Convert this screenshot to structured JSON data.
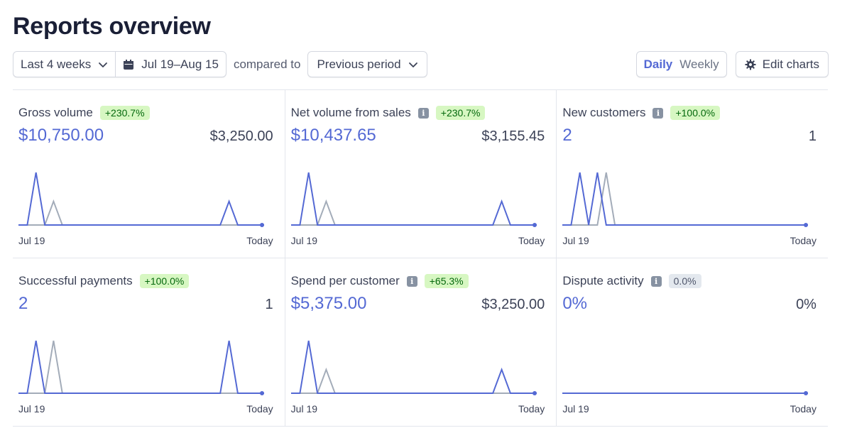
{
  "page": {
    "title": "Reports overview"
  },
  "toolbar": {
    "range_label": "Last 4 weeks",
    "dates_label": "Jul 19–Aug 15",
    "compared_label": "compared to",
    "compare_label": "Previous period",
    "toggle_daily": "Daily",
    "toggle_weekly": "Weekly",
    "edit_charts_label": "Edit charts"
  },
  "colors": {
    "current": "#5469d4",
    "previous": "#a3acb9",
    "badge_green_bg": "#d7f7c2",
    "badge_gray_bg": "#e3e8ee"
  },
  "cards": [
    {
      "label": "Gross volume",
      "info": false,
      "change": "+230.7%",
      "current": "$10,750.00",
      "previous": "$3,250.00",
      "x_start": "Jul 19",
      "x_end": "Today",
      "series_current": [
        0,
        0,
        1,
        0,
        0,
        0,
        0,
        0,
        0,
        0,
        0,
        0,
        0,
        0,
        0,
        0,
        0,
        0,
        0,
        0,
        0,
        0,
        0,
        0,
        0.45,
        0,
        0,
        0,
        0
      ],
      "series_previous": [
        0,
        0,
        0,
        0,
        0.45,
        0,
        0,
        0,
        0,
        0,
        0,
        0,
        0,
        0,
        0,
        0,
        0,
        0,
        0,
        0,
        0,
        0,
        0,
        0,
        0,
        0,
        0,
        0,
        0
      ]
    },
    {
      "label": "Net volume from sales",
      "info": true,
      "change": "+230.7%",
      "current": "$10,437.65",
      "previous": "$3,155.45",
      "x_start": "Jul 19",
      "x_end": "Today",
      "series_current": [
        0,
        0,
        1,
        0,
        0,
        0,
        0,
        0,
        0,
        0,
        0,
        0,
        0,
        0,
        0,
        0,
        0,
        0,
        0,
        0,
        0,
        0,
        0,
        0,
        0.45,
        0,
        0,
        0,
        0
      ],
      "series_previous": [
        0,
        0,
        0,
        0,
        0.45,
        0,
        0,
        0,
        0,
        0,
        0,
        0,
        0,
        0,
        0,
        0,
        0,
        0,
        0,
        0,
        0,
        0,
        0,
        0,
        0,
        0,
        0,
        0,
        0
      ]
    },
    {
      "label": "New customers",
      "info": true,
      "change": "+100.0%",
      "current": "2",
      "previous": "1",
      "x_start": "Jul 19",
      "x_end": "Today",
      "series_current": [
        0,
        0,
        1,
        0,
        1,
        0,
        0,
        0,
        0,
        0,
        0,
        0,
        0,
        0,
        0,
        0,
        0,
        0,
        0,
        0,
        0,
        0,
        0,
        0,
        0,
        0,
        0,
        0,
        0
      ],
      "series_previous": [
        0,
        0,
        0,
        0,
        0,
        1,
        0,
        0,
        0,
        0,
        0,
        0,
        0,
        0,
        0,
        0,
        0,
        0,
        0,
        0,
        0,
        0,
        0,
        0,
        0,
        0,
        0,
        0,
        0
      ]
    },
    {
      "label": "Successful payments",
      "info": false,
      "change": "+100.0%",
      "current": "2",
      "previous": "1",
      "x_start": "Jul 19",
      "x_end": "Today",
      "series_current": [
        0,
        0,
        1,
        0,
        0,
        0,
        0,
        0,
        0,
        0,
        0,
        0,
        0,
        0,
        0,
        0,
        0,
        0,
        0,
        0,
        0,
        0,
        0,
        0,
        1,
        0,
        0,
        0,
        0
      ],
      "series_previous": [
        0,
        0,
        0,
        0,
        1,
        0,
        0,
        0,
        0,
        0,
        0,
        0,
        0,
        0,
        0,
        0,
        0,
        0,
        0,
        0,
        0,
        0,
        0,
        0,
        0,
        0,
        0,
        0,
        0
      ]
    },
    {
      "label": "Spend per customer",
      "info": true,
      "change": "+65.3%",
      "current": "$5,375.00",
      "previous": "$3,250.00",
      "x_start": "Jul 19",
      "x_end": "Today",
      "series_current": [
        0,
        0,
        1,
        0,
        0,
        0,
        0,
        0,
        0,
        0,
        0,
        0,
        0,
        0,
        0,
        0,
        0,
        0,
        0,
        0,
        0,
        0,
        0,
        0,
        0.45,
        0,
        0,
        0,
        0
      ],
      "series_previous": [
        0,
        0,
        0,
        0,
        0.45,
        0,
        0,
        0,
        0,
        0,
        0,
        0,
        0,
        0,
        0,
        0,
        0,
        0,
        0,
        0,
        0,
        0,
        0,
        0,
        0,
        0,
        0,
        0,
        0
      ]
    },
    {
      "label": "Dispute activity",
      "info": true,
      "change": "0.0%",
      "change_neutral": true,
      "current": "0%",
      "previous": "0%",
      "x_start": "Jul 19",
      "x_end": "Today",
      "series_current": [
        0,
        0,
        0,
        0,
        0,
        0,
        0,
        0,
        0,
        0,
        0,
        0,
        0,
        0,
        0,
        0,
        0,
        0,
        0,
        0,
        0,
        0,
        0,
        0,
        0,
        0,
        0,
        0,
        0
      ],
      "series_previous": [
        0,
        0,
        0,
        0,
        0,
        0,
        0,
        0,
        0,
        0,
        0,
        0,
        0,
        0,
        0,
        0,
        0,
        0,
        0,
        0,
        0,
        0,
        0,
        0,
        0,
        0,
        0,
        0,
        0
      ]
    }
  ]
}
